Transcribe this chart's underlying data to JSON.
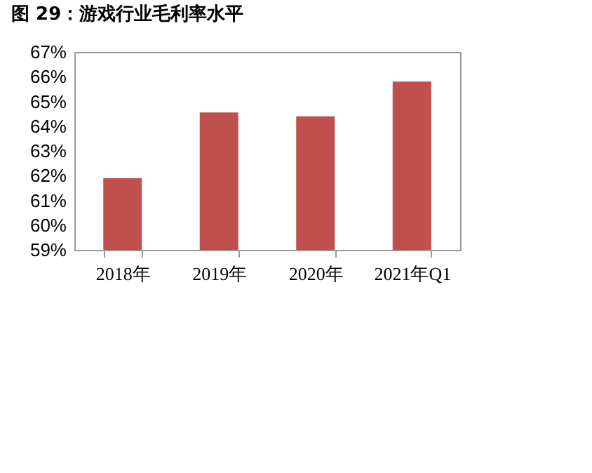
{
  "chart_data": {
    "type": "bar",
    "title": "图 29：游戏行业毛利率水平",
    "categories": [
      "2018年",
      "2019年",
      "2020年",
      "2021年Q1"
    ],
    "values": [
      61.9,
      64.55,
      64.4,
      65.8
    ],
    "color": "#c0504d",
    "ylim": [
      59,
      67
    ],
    "yticks": [
      {
        "value": 59,
        "label": "59%"
      },
      {
        "value": 60,
        "label": "60%"
      },
      {
        "value": 61,
        "label": "61%"
      },
      {
        "value": 62,
        "label": "62%"
      },
      {
        "value": 63,
        "label": "63%"
      },
      {
        "value": 64,
        "label": "64%"
      },
      {
        "value": 65,
        "label": "65%"
      },
      {
        "value": 66,
        "label": "66%"
      },
      {
        "value": 67,
        "label": "67%"
      }
    ],
    "grid": false
  }
}
